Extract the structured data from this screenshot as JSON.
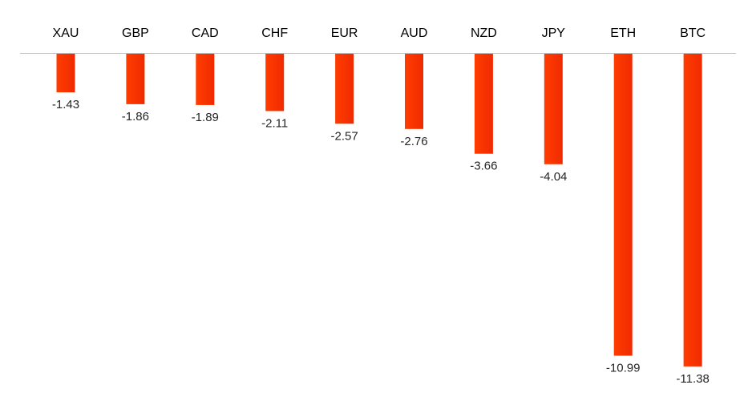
{
  "chart_data": {
    "type": "bar",
    "title": "",
    "xlabel": "",
    "ylabel": "",
    "categories": [
      "XAU",
      "GBP",
      "CAD",
      "CHF",
      "EUR",
      "AUD",
      "NZD",
      "JPY",
      "ETH",
      "BTC"
    ],
    "values": [
      -1.43,
      -1.86,
      -1.89,
      -2.11,
      -2.57,
      -2.76,
      -3.66,
      -4.04,
      -10.99,
      -11.38
    ],
    "value_labels": [
      "-1.43",
      "-1.86",
      "-1.89",
      "-2.11",
      "-2.57",
      "-2.76",
      "-3.66",
      "-4.04",
      "-10.99",
      "-11.38"
    ],
    "ylim": [
      -12,
      0
    ],
    "grid": false,
    "legend": "none",
    "bar_color": "#ff3d00",
    "bar_color_dark": "#f02a00",
    "axis_color": "#bfbfbf"
  }
}
